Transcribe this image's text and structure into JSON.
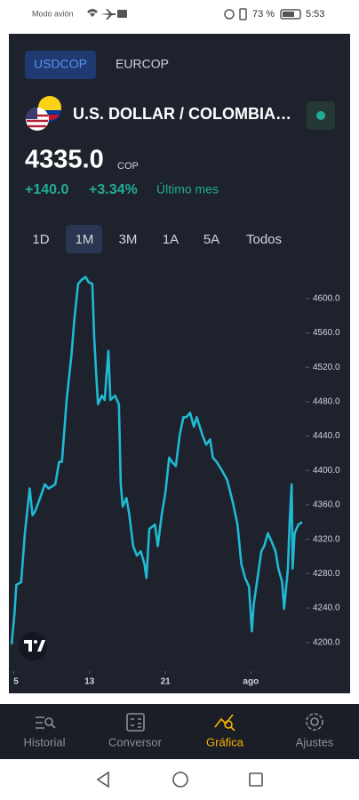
{
  "status_bar": {
    "mode": "Modo avión",
    "battery": "73 %",
    "time": "5:53"
  },
  "tabs": [
    "USDCOP",
    "EURCOP"
  ],
  "header": {
    "title": "U.S. DOLLAR / COLOMBIA…",
    "price": "4335.0",
    "currency": "COP",
    "change": "+140.0",
    "change_pct": "+3.34%",
    "period_label": "Último mes"
  },
  "periods": [
    "1D",
    "1M",
    "3M",
    "1A",
    "5A",
    "Todos"
  ],
  "chart_data": {
    "type": "line",
    "color": "#1fb9d2",
    "x": [
      4.8,
      5.1,
      5.3,
      5.8,
      6.2,
      6.7,
      7.0,
      7.3,
      7.8,
      8.3,
      8.7,
      9.4,
      9.8,
      10.1,
      10.6,
      11.1,
      11.4,
      11.8,
      12.2,
      12.6,
      12.9,
      13.3,
      13.5,
      13.7,
      13.9,
      14.3,
      14.6,
      15.0,
      15.2,
      15.7,
      16.1,
      16.3,
      16.5,
      16.9,
      17.2,
      17.6,
      18.0,
      18.4,
      18.8,
      19.0,
      19.3,
      19.9,
      20.2,
      20.6,
      21.0,
      21.4,
      21.7,
      22.1,
      22.5,
      22.9,
      23.2,
      23.6,
      24.0,
      24.3,
      24.9,
      25.3,
      25.7,
      26.0,
      26.4,
      27.0,
      27.5,
      28.1,
      28.6,
      29.0,
      29.4,
      29.8,
      30.1,
      30.3,
      30.7,
      31.1,
      31.4,
      31.8,
      32.2,
      32.6,
      32.9,
      33.3,
      33.5,
      33.9,
      34.1,
      34.3,
      34.4,
      34.6,
      35.0,
      35.4
    ],
    "values": [
      4198,
      4234,
      4267,
      4270,
      4327,
      4379,
      4348,
      4353,
      4368,
      4384,
      4379,
      4384,
      4410,
      4410,
      4482,
      4534,
      4575,
      4617,
      4622,
      4625,
      4619,
      4617,
      4555,
      4513,
      4477,
      4487,
      4482,
      4539,
      4482,
      4487,
      4477,
      4384,
      4358,
      4368,
      4348,
      4312,
      4301,
      4306,
      4291,
      4275,
      4332,
      4337,
      4312,
      4348,
      4374,
      4415,
      4410,
      4405,
      4441,
      4462,
      4462,
      4467,
      4451,
      4462,
      4441,
      4430,
      4436,
      4415,
      4410,
      4399,
      4389,
      4363,
      4337,
      4291,
      4275,
      4265,
      4213,
      4244,
      4275,
      4306,
      4312,
      4327,
      4317,
      4306,
      4286,
      4270,
      4239,
      4286,
      4343,
      4384,
      4286,
      4327,
      4337,
      4340
    ],
    "xlim": [
      4.7,
      35.4
    ],
    "ylim": [
      4177,
      4637
    ],
    "xticks": [
      5,
      13,
      21,
      {
        "value": 30,
        "label": "ago"
      }
    ],
    "yticks": [
      {
        "value": 4200,
        "label": "4200.0"
      },
      {
        "value": 4240,
        "label": "4240.0"
      },
      {
        "value": 4280,
        "label": "4280.0"
      },
      {
        "value": 4320,
        "label": "4320.0"
      },
      {
        "value": 4360,
        "label": "4360.0"
      },
      {
        "value": 4400,
        "label": "4400.0"
      },
      {
        "value": 4440,
        "label": "4440.0"
      },
      {
        "value": 4480,
        "label": "4480.0"
      },
      {
        "value": 4520,
        "label": "4520.0"
      },
      {
        "value": 4560,
        "label": "4560.0"
      },
      {
        "value": 4600,
        "label": "4600.0"
      }
    ]
  },
  "nav": [
    "Historial",
    "Conversor",
    "Gráfica",
    "Ajustes"
  ]
}
